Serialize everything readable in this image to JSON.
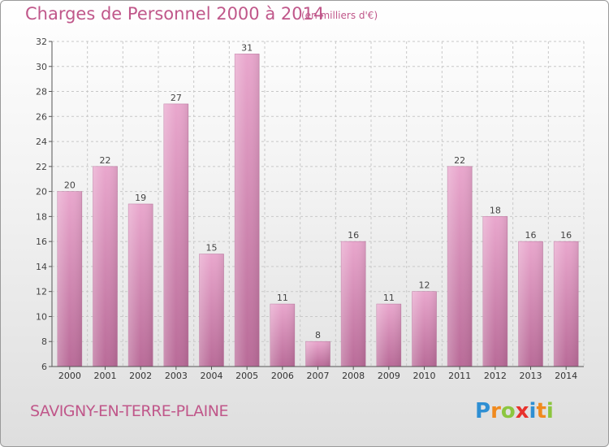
{
  "header": {
    "title": "Charges de Personnel 2000 à 2014",
    "subtitle": "(en milliers d'€)"
  },
  "footer": {
    "commune": "SAVIGNY-EN-TERRE-PLAINE",
    "logo": "Proxiti",
    "logo_letters": [
      "P",
      "r",
      "o",
      "x",
      "i",
      "t",
      "i"
    ],
    "logo_colors": [
      "#2f8fd3",
      "#f08a1e",
      "#8cc63f",
      "#e8322d",
      "#2f8fd3",
      "#f08a1e",
      "#8cc63f"
    ]
  },
  "chart_data": {
    "type": "bar",
    "categories": [
      "2000",
      "2001",
      "2002",
      "2003",
      "2004",
      "2005",
      "2006",
      "2007",
      "2008",
      "2009",
      "2010",
      "2011",
      "2012",
      "2013",
      "2014"
    ],
    "values": [
      20,
      22,
      19,
      27,
      15,
      31,
      11,
      8,
      16,
      11,
      12,
      22,
      18,
      16,
      16
    ],
    "data_labels": [
      "20",
      "22",
      "19",
      "27",
      "15",
      "31",
      "11",
      "8",
      "16",
      "11",
      "12",
      "22",
      "18",
      "16",
      "16"
    ],
    "yticks": [
      "6",
      "8",
      "10",
      "12",
      "14",
      "16",
      "18",
      "20",
      "22",
      "24",
      "26",
      "28",
      "30",
      "32"
    ],
    "ylim": [
      6,
      32
    ],
    "grid": true,
    "bar_color": "#d98ab7"
  }
}
